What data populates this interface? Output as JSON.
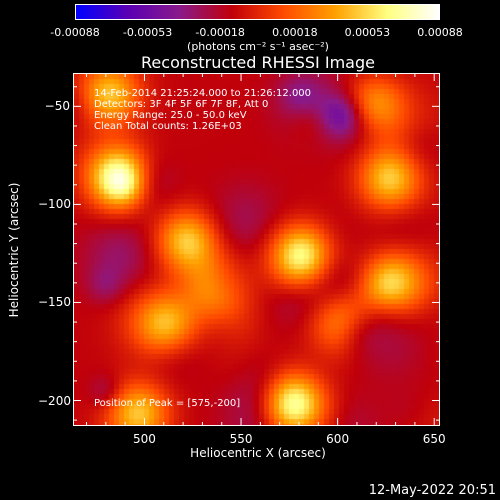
{
  "colorbar": {
    "tick_labels": [
      "-0.00088",
      "-0.00053",
      "-0.00018",
      "0.00018",
      "0.00053",
      "0.00088"
    ],
    "tick_values": [
      -0.00088,
      -0.00053,
      -0.00018,
      0.00018,
      0.00053,
      0.00088
    ],
    "units": "(photons cm⁻² s⁻¹ asec⁻²)",
    "range": [
      -0.00088,
      0.00088
    ],
    "colors": [
      "#0000ff",
      "#5a00b4",
      "#8a1a8a",
      "#c0000a",
      "#ff4a00",
      "#ffa000",
      "#ffff80",
      "#ffffff"
    ]
  },
  "chart_data": {
    "type": "heatmap",
    "title": "Reconstructed RHESSI Image",
    "xlabel": "Heliocentric X (arcsec)",
    "ylabel": "Heliocentric Y (arcsec)",
    "xlim": [
      463,
      653
    ],
    "ylim": [
      -213,
      -33
    ],
    "xticks": [
      500,
      550,
      600,
      650
    ],
    "yticks": [
      -50,
      -100,
      -150,
      -200
    ],
    "xtick_labels": [
      "500",
      "550",
      "600",
      "650"
    ],
    "ytick_labels": [
      "−50",
      "−100",
      "−150",
      "−200"
    ],
    "peak": [
      575,
      -200
    ],
    "bright_regions": [
      {
        "x": 485,
        "y": -85,
        "intensity": 0.00088
      },
      {
        "x": 480,
        "y": -42,
        "intensity": 0.0006
      },
      {
        "x": 580,
        "y": -125,
        "intensity": 0.00085
      },
      {
        "x": 625,
        "y": -140,
        "intensity": 0.00075
      },
      {
        "x": 535,
        "y": -140,
        "intensity": 0.0005
      },
      {
        "x": 575,
        "y": -200,
        "intensity": 0.00088
      },
      {
        "x": 625,
        "y": -85,
        "intensity": 0.0006
      },
      {
        "x": 615,
        "y": -45,
        "intensity": 0.00045
      },
      {
        "x": 510,
        "y": -160,
        "intensity": 0.0005
      },
      {
        "x": 495,
        "y": -205,
        "intensity": 0.0006
      },
      {
        "x": 520,
        "y": -117,
        "intensity": 0.0006
      },
      {
        "x": 600,
        "y": -160,
        "intensity": 0.0004
      }
    ]
  },
  "annotations": {
    "line1": "14-Feb-2014 21:25:24.000 to 21:26:12.000",
    "line2": "Detectors: 3F 4F 5F 6F 7F 8F, Att 0",
    "line3": "Energy Range: 25.0 - 50.0 keV",
    "line4": "Clean    Total counts: 1.26E+03",
    "peak_label": "Position of Peak = [575,-200]"
  },
  "timestamp": "12-May-2022 20:51"
}
